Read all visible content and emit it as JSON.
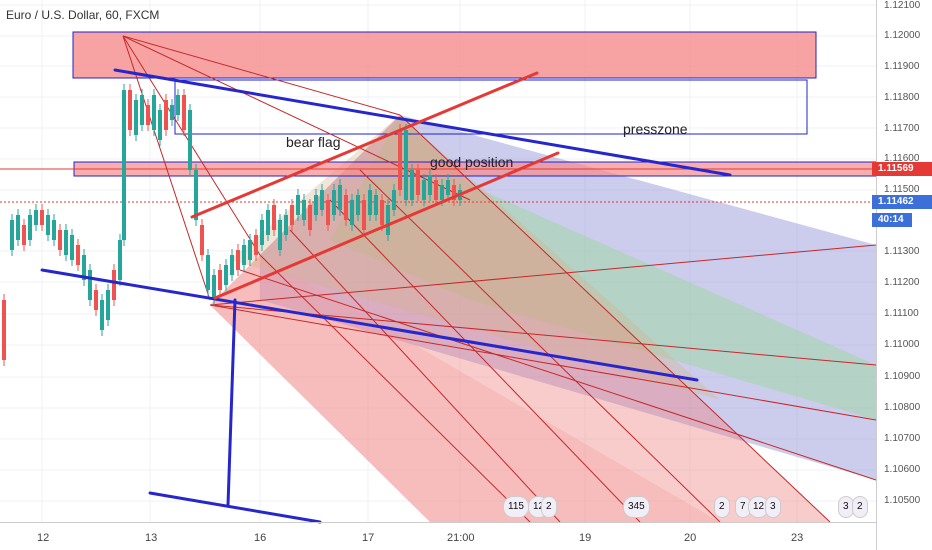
{
  "header": {
    "title": "Euro / U.S. Dollar, 60, FXCM"
  },
  "price_axis": {
    "labels": [
      "1.12100",
      "1.12000",
      "1.11900",
      "1.11800",
      "1.11700",
      "1.11600",
      "1.11500",
      "1.11300",
      "1.11200",
      "1.11100",
      "1.11000",
      "1.10900",
      "1.10800",
      "1.10700",
      "1.10600",
      "1.10500"
    ],
    "current_price": "1.11462",
    "level_price": "1.11569",
    "countdown": "40:14",
    "current_color": "#3d6fd9",
    "level_color": "#e53935",
    "countdown_color": "#3d6fd9"
  },
  "time_axis": {
    "labels": [
      "12",
      "13",
      "16",
      "17",
      "21:00",
      "19",
      "20",
      "23"
    ]
  },
  "annotations": {
    "bear_flag": "bear flag",
    "presszone": "presszone",
    "good_position": "good position"
  },
  "events": [
    "115",
    "12",
    "2",
    "345",
    "2",
    "7",
    "12",
    "3",
    "3",
    "2"
  ]
}
